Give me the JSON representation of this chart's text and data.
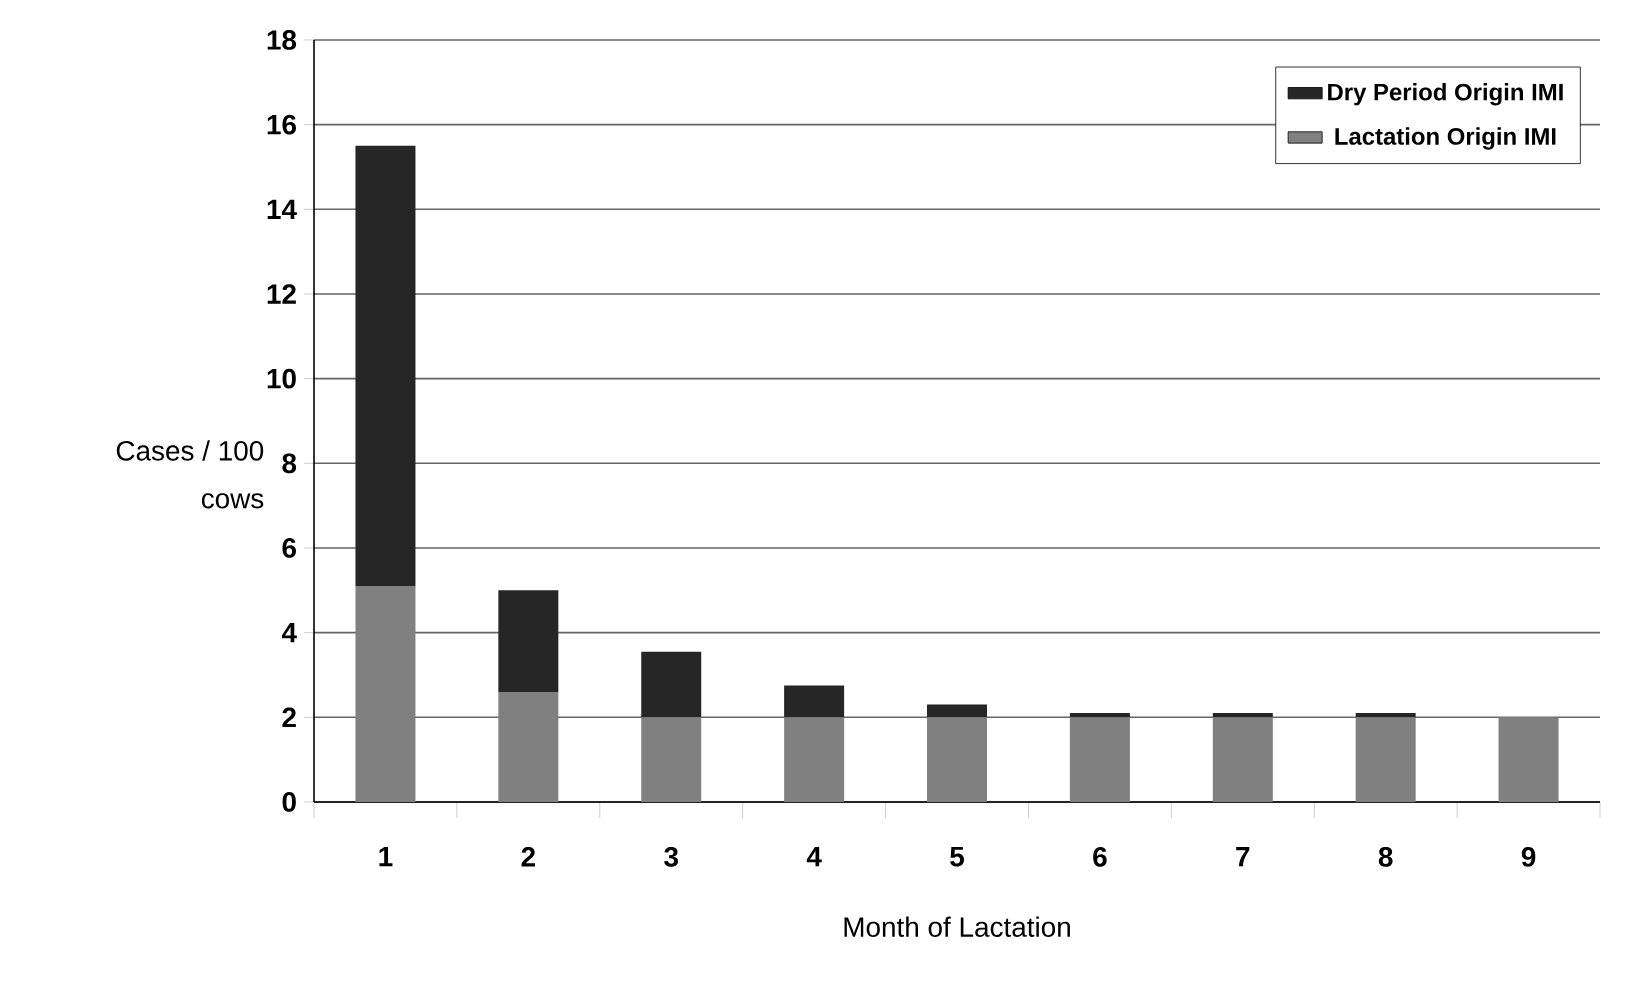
{
  "chart_data": {
    "type": "bar",
    "stacked": true,
    "categories": [
      "1",
      "2",
      "3",
      "4",
      "5",
      "6",
      "7",
      "8",
      "9"
    ],
    "series": [
      {
        "name": "Lactation Origin IMI",
        "color": "#808080",
        "values": [
          5.1,
          2.6,
          2.0,
          2.0,
          2.0,
          2.0,
          2.0,
          2.0,
          2.0
        ]
      },
      {
        "name": "Dry Period Origin IMI",
        "color": "#262626",
        "values": [
          10.4,
          2.4,
          1.55,
          0.75,
          0.3,
          0.1,
          0.1,
          0.1,
          0.0
        ]
      }
    ],
    "ylabel": "Cases / 100 cows",
    "xlabel": "Month of Lactation",
    "ylim": [
      0,
      18
    ],
    "yticks": [
      0,
      2,
      4,
      6,
      8,
      10,
      12,
      14,
      16,
      18
    ],
    "grid": "y",
    "legend": "top right"
  }
}
